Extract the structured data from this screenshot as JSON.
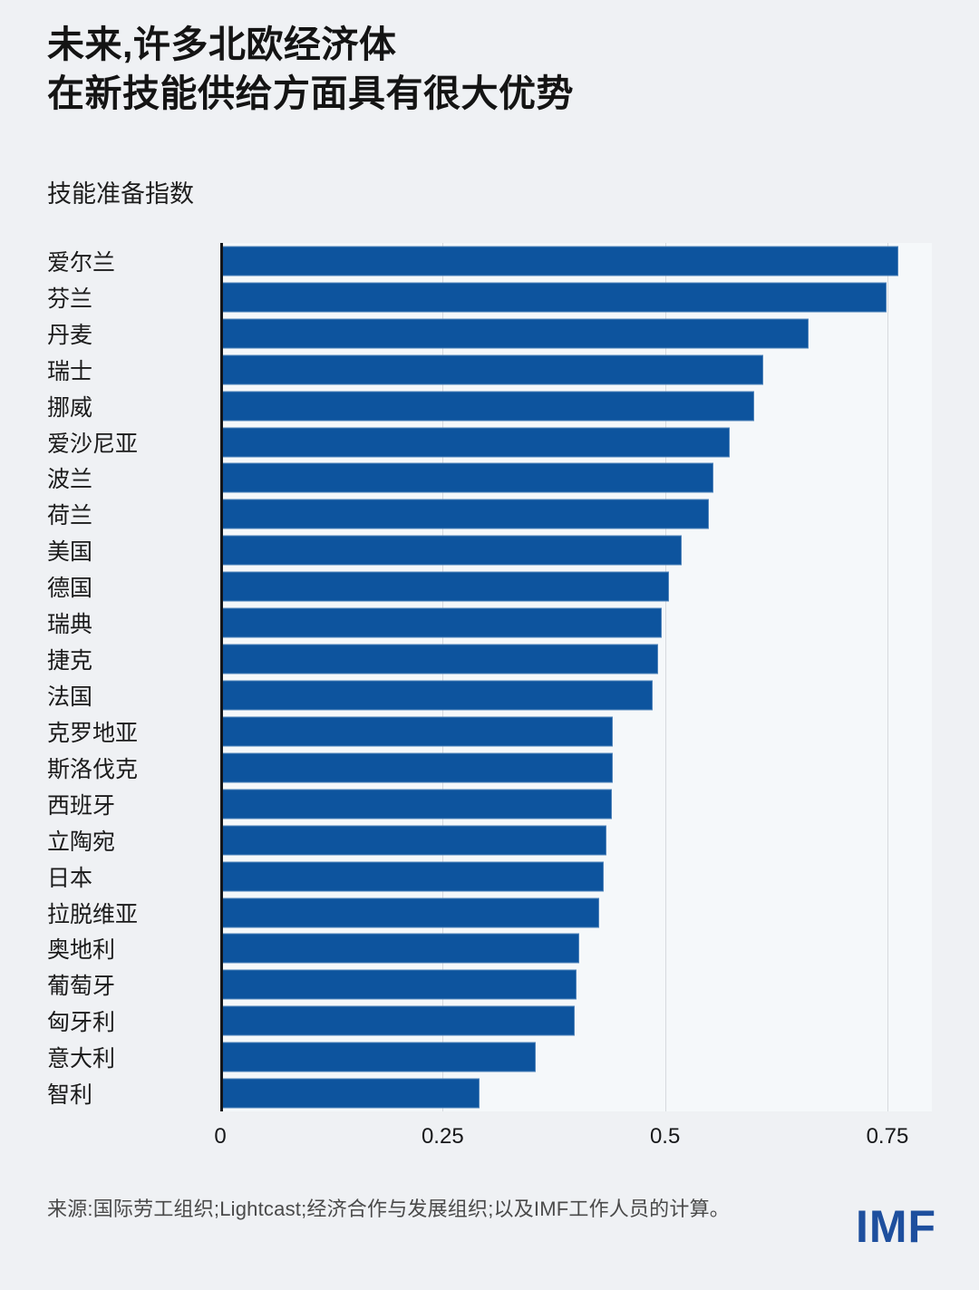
{
  "header": {
    "title_line1": "未来,许多北欧经济体",
    "title_line2": "在新技能供给方面具有很大优势",
    "subtitle": "技能准备指数"
  },
  "chart_data": {
    "type": "bar",
    "orientation": "horizontal",
    "title": "未来,许多北欧经济体在新技能供给方面具有很大优势",
    "subtitle": "技能准备指数",
    "xlabel": "",
    "ylabel": "",
    "categories": [
      "爱尔兰",
      "芬兰",
      "丹麦",
      "瑞士",
      "挪威",
      "爱沙尼亚",
      "波兰",
      "荷兰",
      "美国",
      "德国",
      "瑞典",
      "捷克",
      "法国",
      "克罗地亚",
      "斯洛伐克",
      "西班牙",
      "立陶宛",
      "日本",
      "拉脱维亚",
      "奥地利",
      "葡萄牙",
      "匈牙利",
      "意大利",
      "智利"
    ],
    "values": [
      0.762,
      0.749,
      0.661,
      0.61,
      0.6,
      0.573,
      0.554,
      0.549,
      0.519,
      0.504,
      0.496,
      0.492,
      0.486,
      0.441,
      0.441,
      0.44,
      0.434,
      0.431,
      0.426,
      0.404,
      0.4,
      0.398,
      0.355,
      0.291
    ],
    "xlim": [
      0,
      0.8
    ],
    "xticks": [
      0,
      0.25,
      0.5,
      0.75
    ],
    "xtick_labels": [
      "0",
      "0.25",
      "0.5",
      "0.75"
    ],
    "grid": "vertical gridlines at 0.25, 0.5, 0.75; solid dark y-axis line at 0; no horizontal gridlines",
    "legend": "none",
    "bar_color": "#0d549e"
  },
  "footer": {
    "source": "来源:国际劳工组织;Lightcast;经济合作与发展组织;以及IMF工作人员的计算。",
    "logo": "IMF"
  },
  "colors": {
    "page_background": "#eff1f4",
    "plot_background": "#f5f8fa",
    "bar": "#0d549e",
    "gridline": "#d7dade",
    "axis_line": "#14161a",
    "title_text": "#141414",
    "source_text": "#4a4a4a",
    "logo_blue": "#1e4f9e"
  }
}
